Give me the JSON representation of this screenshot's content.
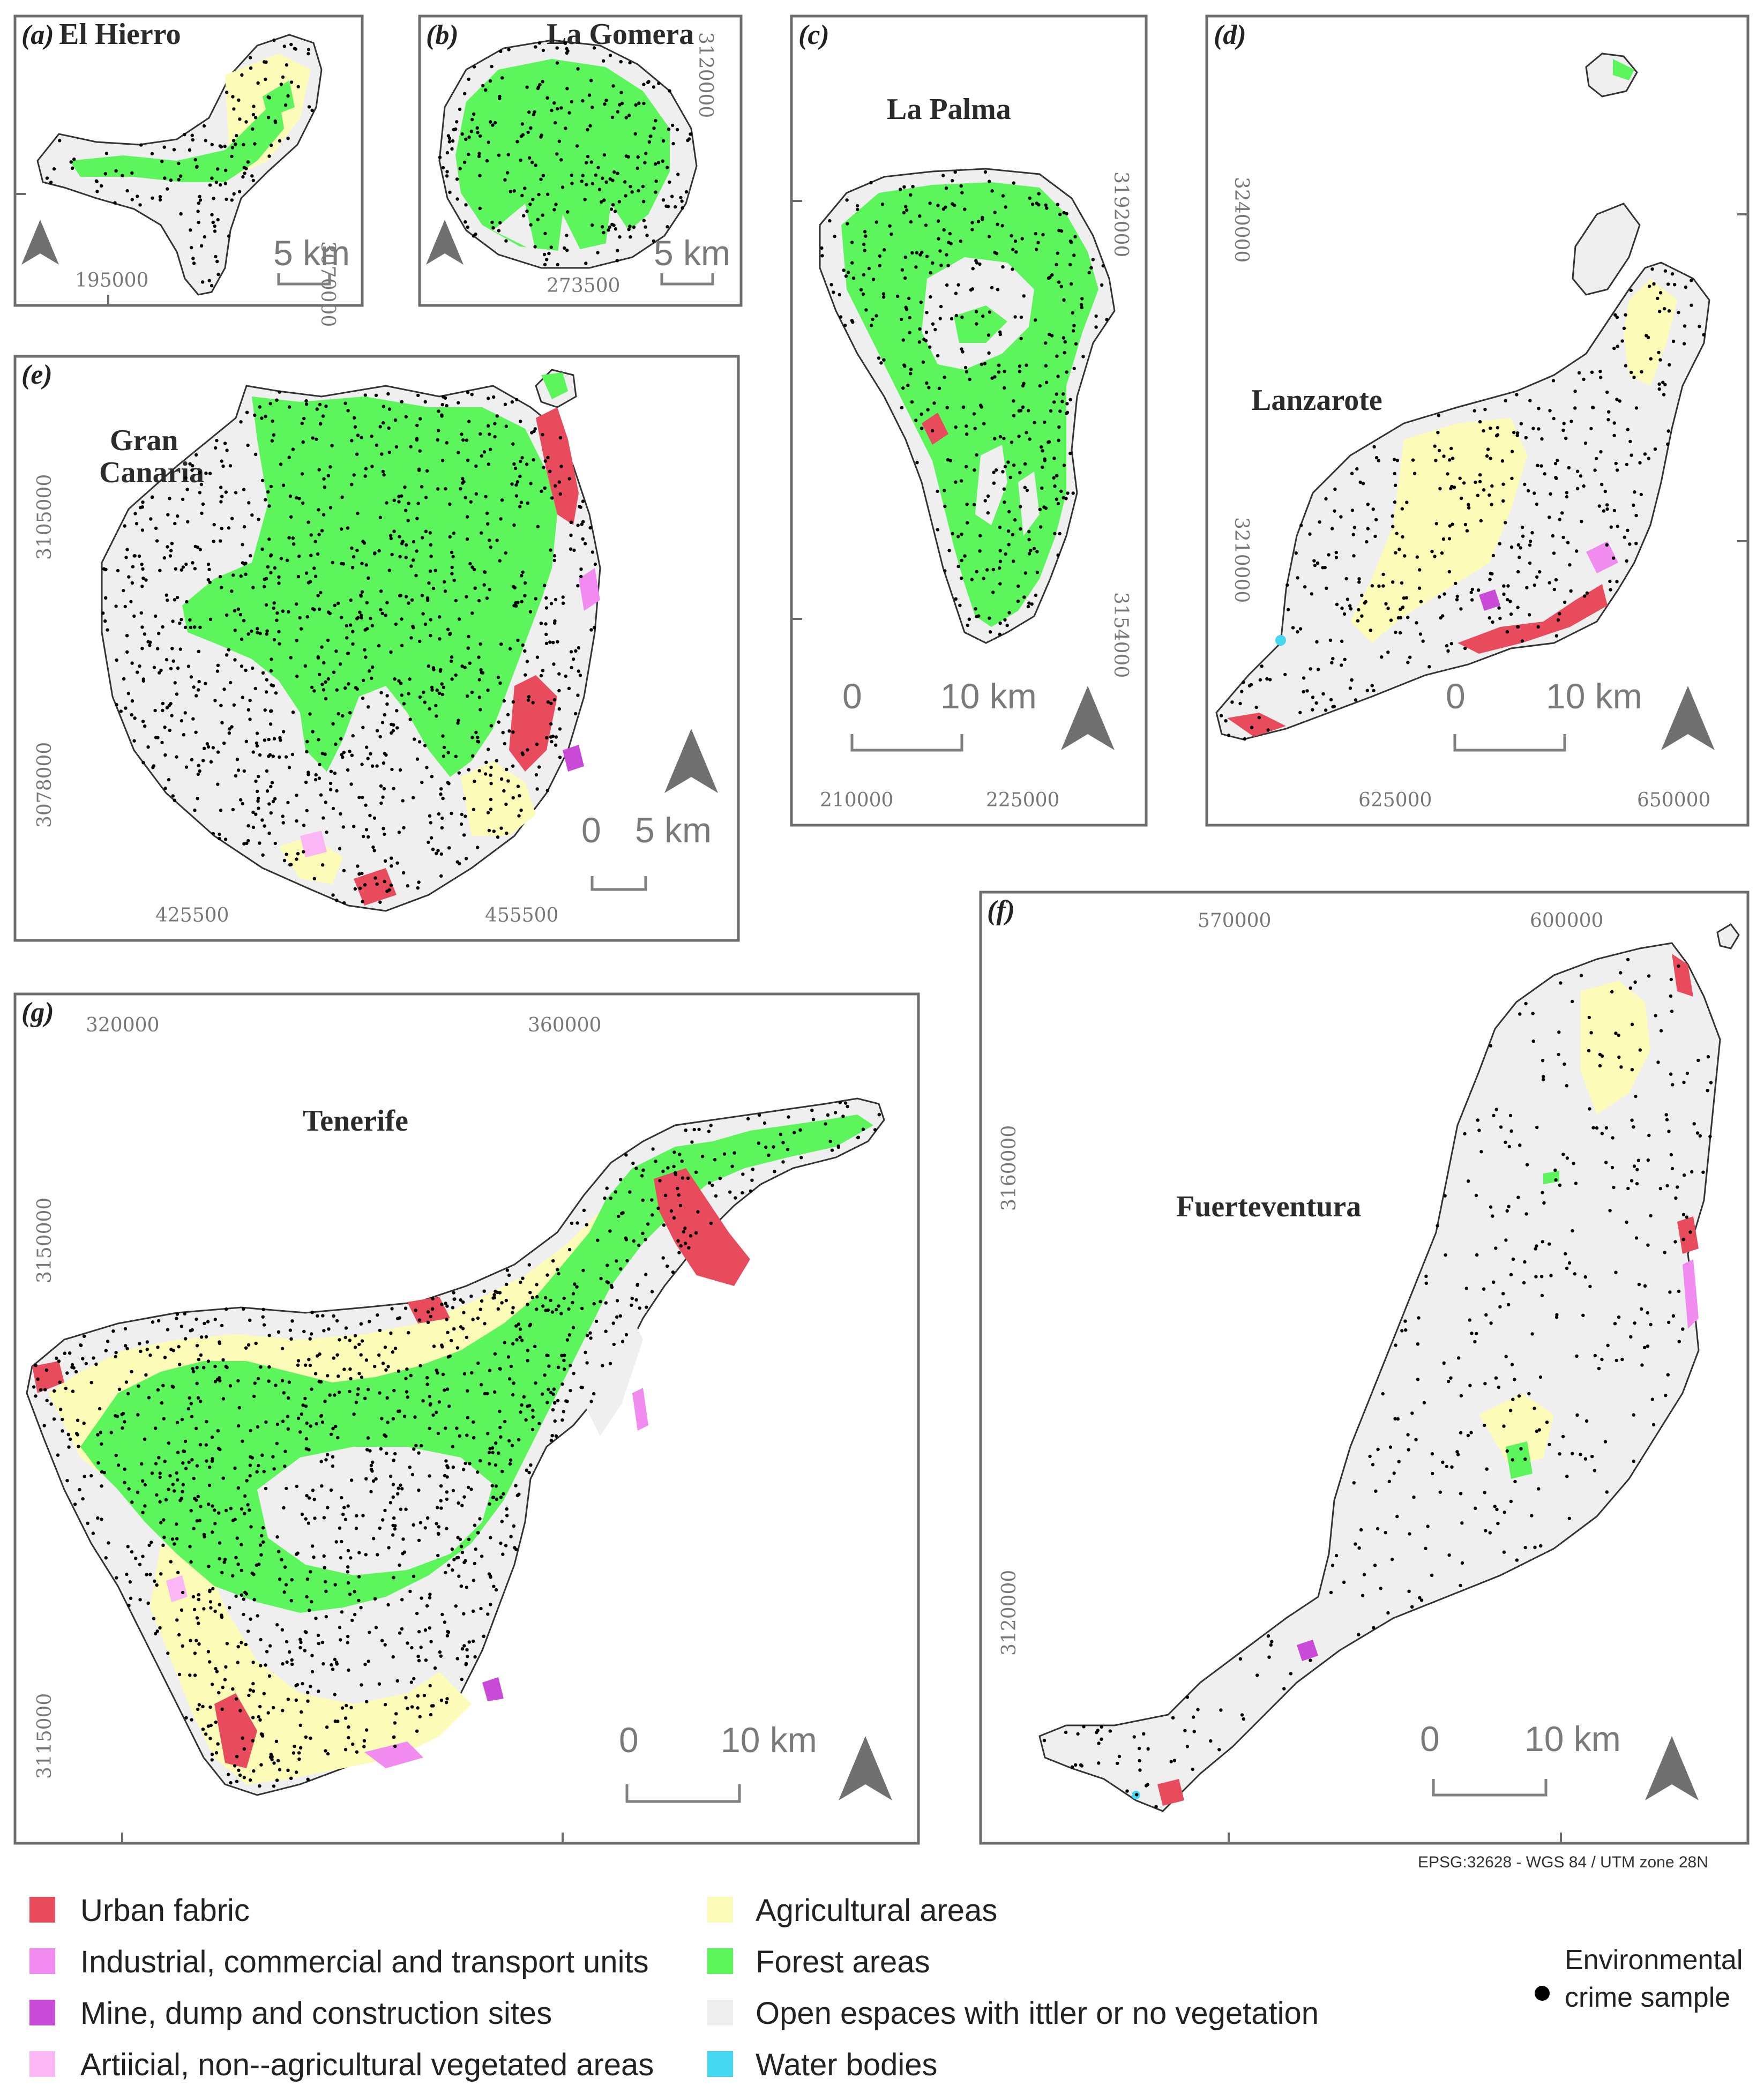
{
  "panels": {
    "a": {
      "label": "(a)",
      "name": "El Hierro",
      "x_coord": "195000",
      "y_coord": "3070000",
      "scale": "5 km"
    },
    "b": {
      "label": "(b)",
      "name": "La Gomera",
      "x_coord": "273500",
      "y_coord": "3120000",
      "scale": "5 km"
    },
    "c": {
      "label": "(c)",
      "name": "La Palma",
      "x_coords": [
        "210000",
        "225000"
      ],
      "y_coords": [
        "3192000",
        "3154000"
      ],
      "scale_zero": "0",
      "scale": "10 km"
    },
    "d": {
      "label": "(d)",
      "name": "Lanzarote",
      "x_coords": [
        "625000",
        "650000"
      ],
      "y_coords": [
        "3240000",
        "3210000"
      ],
      "scale_zero": "0",
      "scale": "10 km"
    },
    "e": {
      "label": "(e)",
      "name_line1": "Gran",
      "name_line2": "Canaria",
      "x_coords": [
        "425500",
        "455500"
      ],
      "y_coords": [
        "3105000",
        "3078000"
      ],
      "scale_zero": "0",
      "scale": "5 km"
    },
    "f": {
      "label": "(f)",
      "name": "Fuerteventura",
      "x_coords": [
        "570000",
        "600000"
      ],
      "y_coords": [
        "3160000",
        "3120000"
      ],
      "scale_zero": "0",
      "scale": "10 km"
    },
    "g": {
      "label": "(g)",
      "name": "Tenerife",
      "x_coords": [
        "320000",
        "360000"
      ],
      "y_coords": [
        "3150000",
        "3115000"
      ],
      "scale_zero": "0",
      "scale": "10 km"
    }
  },
  "projection": "EPSG:32628 - WGS 84 / UTM zone 28N",
  "legend": {
    "items": [
      {
        "label": "Urban fabric",
        "color": "#e84b5c"
      },
      {
        "label": "Industrial, commercial and transport units",
        "color": "#f28bef"
      },
      {
        "label": "Mine, dump and construction sites",
        "color": "#c94ad6"
      },
      {
        "label": "Artiicial, non--agricultural vegetated areas",
        "color": "#fbb6f6"
      },
      {
        "label": "Agricultural areas",
        "color": "#fdfbb8"
      },
      {
        "label": "Forest areas",
        "color": "#5cf55c"
      },
      {
        "label": "Open espaces with ittler or no vegetation",
        "color": "#efefef"
      },
      {
        "label": "Water bodies",
        "color": "#46d8f0"
      }
    ],
    "sample_line1": "Environmental",
    "sample_line2": "crime sample"
  }
}
